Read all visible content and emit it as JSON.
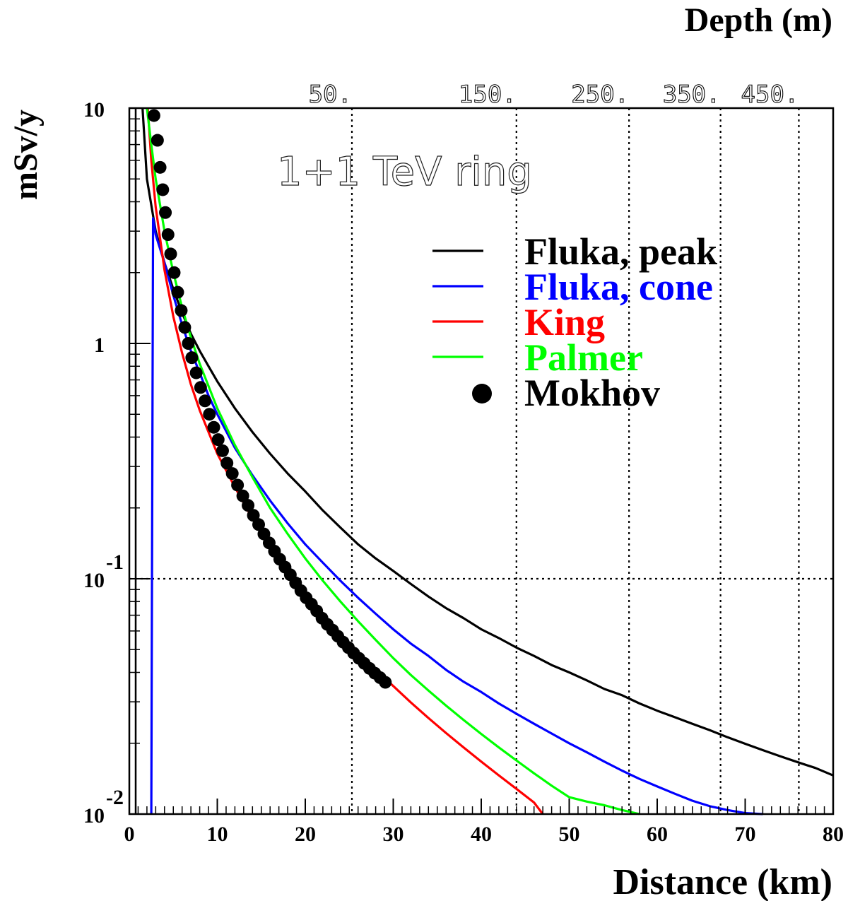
{
  "chart_data": {
    "type": "line",
    "annotation": "1+1 TeV ring",
    "xlabel": "Distance (km)",
    "ylabel": "mSv/y",
    "top_axis_label": "Depth (m)",
    "xlim": [
      0,
      80
    ],
    "ylim": [
      0.01,
      10
    ],
    "yscale": "log",
    "x_ticks": [
      {
        "value": 0,
        "label": "0"
      },
      {
        "value": 10,
        "label": "10"
      },
      {
        "value": 20,
        "label": "20"
      },
      {
        "value": 30,
        "label": "30"
      },
      {
        "value": 40,
        "label": "40"
      },
      {
        "value": 50,
        "label": "50"
      },
      {
        "value": 60,
        "label": "60"
      },
      {
        "value": 70,
        "label": "70"
      },
      {
        "value": 80,
        "label": "80"
      }
    ],
    "y_ticks": [
      {
        "value": 10,
        "label": "10",
        "exp": ""
      },
      {
        "value": 1,
        "label": "1",
        "exp": ""
      },
      {
        "value": 0.1,
        "label": "10",
        "exp": "-1"
      },
      {
        "value": 0.01,
        "label": "10",
        "exp": "-2"
      }
    ],
    "depth_ticks": [
      {
        "label": "50.",
        "distance": 25.3
      },
      {
        "label": "150.",
        "distance": 44.0
      },
      {
        "label": "250.",
        "distance": 56.8
      },
      {
        "label": "350.",
        "distance": 67.2
      },
      {
        "label": "450.",
        "distance": 76.1
      }
    ],
    "grid": {
      "vertical_at_depth_ticks": true,
      "horizontal_at": [
        0.1
      ],
      "style": "dotted"
    },
    "legend_position": "upper-right",
    "series": [
      {
        "name": "Fluka, peak",
        "color": "#000000",
        "style": "line",
        "x": [
          1.5,
          2,
          3,
          4,
          5,
          6,
          7,
          8,
          9,
          10,
          12,
          14,
          16,
          18,
          20,
          22,
          24,
          26,
          28,
          30,
          32,
          34,
          36,
          38,
          40,
          42,
          44,
          46,
          48,
          50,
          52,
          54,
          56,
          58,
          60,
          62,
          64,
          66,
          68,
          70,
          72,
          74,
          76,
          78,
          80
        ],
        "y": [
          10,
          5.0,
          3.0,
          2.2,
          1.7,
          1.35,
          1.1,
          0.93,
          0.8,
          0.69,
          0.53,
          0.42,
          0.34,
          0.28,
          0.235,
          0.195,
          0.165,
          0.14,
          0.122,
          0.108,
          0.095,
          0.084,
          0.075,
          0.068,
          0.061,
          0.056,
          0.051,
          0.047,
          0.043,
          0.04,
          0.037,
          0.034,
          0.032,
          0.0295,
          0.0275,
          0.0258,
          0.0242,
          0.0227,
          0.0212,
          0.0199,
          0.0187,
          0.0176,
          0.0166,
          0.0157,
          0.0146
        ]
      },
      {
        "name": "Fluka, cone",
        "color": "#0000ff",
        "style": "line",
        "x": [
          2.5,
          2.7,
          3,
          4,
          5,
          6,
          7,
          8,
          9,
          10,
          12,
          14,
          16,
          18,
          20,
          22,
          24,
          26,
          28,
          30,
          32,
          34,
          36,
          38,
          40,
          42,
          44,
          46,
          48,
          50,
          52,
          54,
          56,
          58,
          60,
          62,
          64,
          66,
          68,
          70,
          72
        ],
        "y": [
          0.01,
          3.4,
          2.9,
          2.2,
          1.6,
          1.2,
          0.93,
          0.75,
          0.6,
          0.5,
          0.36,
          0.275,
          0.215,
          0.172,
          0.14,
          0.117,
          0.098,
          0.083,
          0.071,
          0.061,
          0.053,
          0.047,
          0.041,
          0.0365,
          0.033,
          0.0295,
          0.0267,
          0.0242,
          0.022,
          0.02,
          0.0183,
          0.0167,
          0.0153,
          0.0141,
          0.0131,
          0.0122,
          0.0114,
          0.0108,
          0.0104,
          0.0101,
          0.01
        ]
      },
      {
        "name": "King",
        "color": "#ff0000",
        "style": "line",
        "x": [
          2.1,
          2.5,
          3,
          4,
          5,
          6,
          7,
          8,
          10,
          12,
          14,
          16,
          18,
          20,
          22,
          24,
          26,
          28,
          30,
          32,
          34,
          36,
          38,
          40,
          42,
          44,
          46,
          47
        ],
        "y": [
          10,
          6.0,
          3.8,
          2.05,
          1.3,
          0.91,
          0.67,
          0.52,
          0.34,
          0.245,
          0.18,
          0.138,
          0.108,
          0.087,
          0.071,
          0.058,
          0.049,
          0.041,
          0.035,
          0.0298,
          0.0256,
          0.0221,
          0.0192,
          0.0167,
          0.0146,
          0.0128,
          0.0112,
          0.01
        ]
      },
      {
        "name": "Palmer",
        "color": "#00ff00",
        "style": "line",
        "x": [
          2.0,
          2.5,
          3,
          4,
          5,
          6,
          7,
          8,
          10,
          12,
          14,
          16,
          18,
          20,
          22,
          24,
          26,
          28,
          30,
          32,
          34,
          36,
          38,
          40,
          42,
          44,
          46,
          48,
          50,
          52,
          54,
          56,
          58
        ],
        "y": [
          10,
          7.0,
          5.0,
          3.0,
          2.0,
          1.42,
          1.06,
          0.82,
          0.53,
          0.37,
          0.27,
          0.2,
          0.155,
          0.122,
          0.098,
          0.08,
          0.066,
          0.055,
          0.046,
          0.039,
          0.0335,
          0.0289,
          0.0251,
          0.0219,
          0.0192,
          0.0169,
          0.0149,
          0.0132,
          0.0118,
          0.0113,
          0.0109,
          0.0104,
          0.01
        ]
      },
      {
        "name": "Mokhov",
        "color": "#000000",
        "style": "markers",
        "x": [
          2.8,
          3.2,
          3.5,
          3.8,
          4.1,
          4.4,
          4.7,
          5.1,
          5.5,
          5.9,
          6.3,
          6.7,
          7.1,
          7.6,
          8.1,
          8.6,
          9.1,
          9.6,
          10.1,
          10.6,
          11.1,
          11.7,
          12.3,
          12.9,
          13.5,
          14.1,
          14.7,
          15.3,
          15.9,
          16.5,
          17.1,
          17.7,
          18.3,
          18.9,
          19.5,
          20.1,
          20.7,
          21.3,
          21.9,
          22.5,
          23.1,
          23.7,
          24.3,
          24.9,
          25.5,
          26.1,
          26.7,
          27.3,
          27.9,
          28.5,
          29.1
        ],
        "y": [
          9.3,
          7.3,
          5.6,
          4.5,
          3.6,
          2.9,
          2.4,
          2.0,
          1.65,
          1.38,
          1.17,
          1.0,
          0.87,
          0.75,
          0.65,
          0.57,
          0.5,
          0.44,
          0.39,
          0.35,
          0.31,
          0.28,
          0.25,
          0.225,
          0.205,
          0.186,
          0.17,
          0.155,
          0.142,
          0.131,
          0.121,
          0.112,
          0.104,
          0.096,
          0.089,
          0.083,
          0.078,
          0.073,
          0.068,
          0.064,
          0.0605,
          0.057,
          0.0538,
          0.051,
          0.0483,
          0.0459,
          0.0437,
          0.0416,
          0.0397,
          0.038,
          0.0363
        ]
      }
    ]
  }
}
